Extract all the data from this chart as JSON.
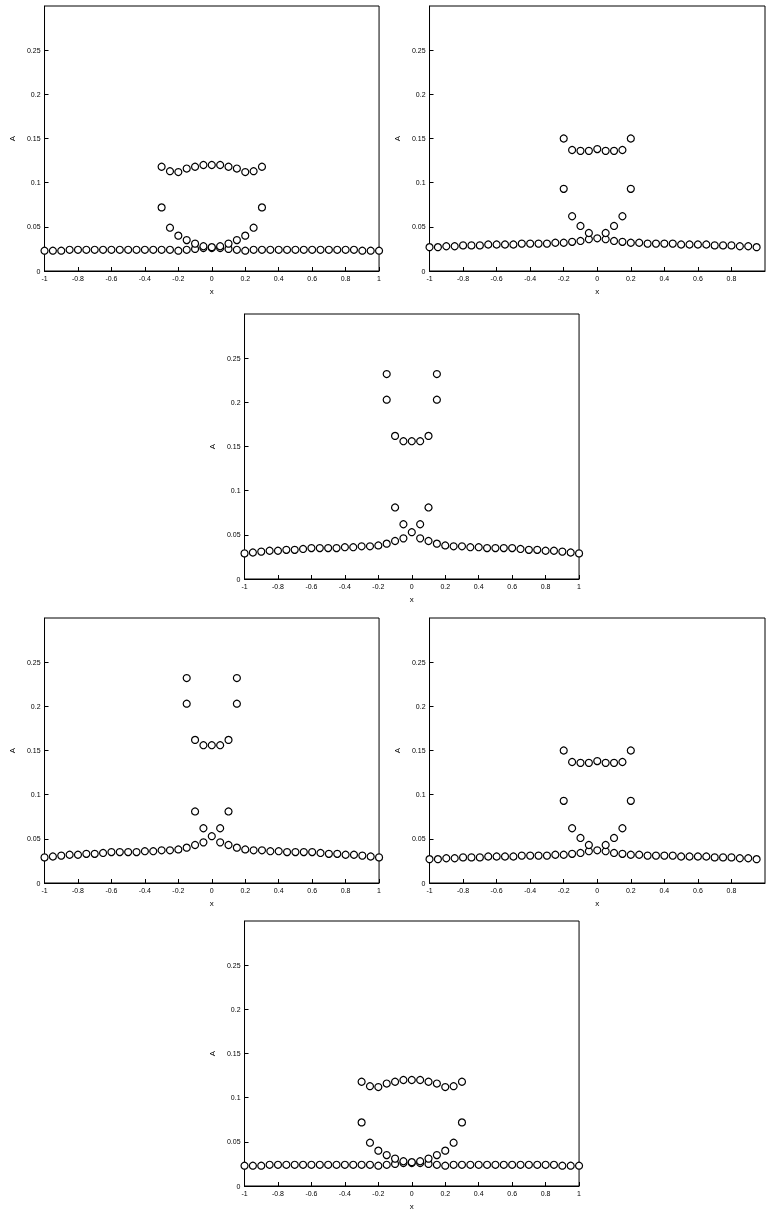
{
  "chart_data": [
    {
      "type": "scatter",
      "xlabel": "x",
      "ylabel": "A",
      "xlim": [
        -1,
        1
      ],
      "ylim": [
        0,
        0.3
      ],
      "xticks": [
        -1,
        -0.8,
        -0.6,
        -0.4,
        -0.2,
        0,
        0.2,
        0.4,
        0.6,
        0.8,
        1
      ],
      "yticks": [
        0,
        0.05,
        0.1,
        0.15,
        0.2,
        0.25
      ],
      "grid": false,
      "marker": "circle",
      "series": [
        {
          "color": "#000000",
          "x": [
            -1,
            -0.95,
            -0.9,
            -0.85,
            -0.8,
            -0.75,
            -0.7,
            -0.65,
            -0.6,
            -0.55,
            -0.5,
            -0.45,
            -0.4,
            -0.35,
            -0.3,
            -0.25,
            -0.2,
            -0.15,
            -0.1,
            -0.05,
            0,
            0.05,
            0.1,
            0.15,
            0.2,
            0.25,
            0.3,
            0.35,
            0.4,
            0.45,
            0.5,
            0.55,
            0.6,
            0.65,
            0.7,
            0.75,
            0.8,
            0.85,
            0.9,
            0.95,
            1,
            -0.3,
            -0.25,
            -0.2,
            -0.15,
            -0.1,
            -0.05,
            0,
            0.05,
            0.1,
            0.15,
            0.2,
            0.25,
            0.3,
            -0.3,
            -0.25,
            -0.2,
            -0.15,
            -0.1,
            -0.05,
            0,
            0.05,
            0.1,
            0.15,
            0.2,
            0.25,
            0.3
          ],
          "values": [
            0.023,
            0.023,
            0.023,
            0.024,
            0.024,
            0.024,
            0.024,
            0.024,
            0.024,
            0.024,
            0.024,
            0.024,
            0.024,
            0.024,
            0.024,
            0.024,
            0.023,
            0.024,
            0.025,
            0.026,
            0.026,
            0.026,
            0.025,
            0.024,
            0.023,
            0.024,
            0.024,
            0.024,
            0.024,
            0.024,
            0.024,
            0.024,
            0.024,
            0.024,
            0.024,
            0.024,
            0.024,
            0.024,
            0.023,
            0.023,
            0.023,
            0.118,
            0.113,
            0.112,
            0.116,
            0.118,
            0.12,
            0.12,
            0.12,
            0.118,
            0.116,
            0.112,
            0.113,
            0.118,
            0.072,
            0.049,
            0.04,
            0.035,
            0.031,
            0.028,
            0.027,
            0.028,
            0.031,
            0.035,
            0.04,
            0.049,
            0.072
          ]
        }
      ]
    },
    {
      "type": "scatter",
      "xlabel": "x",
      "ylabel": "A",
      "xlim": [
        -1,
        1
      ],
      "ylim": [
        0,
        0.3
      ],
      "xticks": [
        -1,
        -0.8,
        -0.6,
        -0.4,
        -0.2,
        0,
        0.2,
        0.4,
        0.6,
        0.8
      ],
      "yticks": [
        0,
        0.05,
        0.1,
        0.15,
        0.2,
        0.25
      ],
      "grid": false,
      "marker": "circle",
      "series": [
        {
          "color": "#000000",
          "x": [
            -1,
            -0.95,
            -0.9,
            -0.85,
            -0.8,
            -0.75,
            -0.7,
            -0.65,
            -0.6,
            -0.55,
            -0.5,
            -0.45,
            -0.4,
            -0.35,
            -0.3,
            -0.25,
            -0.2,
            -0.15,
            -0.1,
            -0.05,
            0,
            0.05,
            0.1,
            0.15,
            0.2,
            0.25,
            0.3,
            0.35,
            0.4,
            0.45,
            0.5,
            0.55,
            0.6,
            0.65,
            0.7,
            0.75,
            0.8,
            0.85,
            0.9,
            0.95,
            -0.2,
            -0.15,
            -0.1,
            -0.05,
            0,
            0.05,
            0.1,
            0.15,
            0.2,
            -0.2,
            0.2,
            -0.15,
            -0.1,
            -0.05,
            0.05,
            0.1,
            0.15
          ],
          "values": [
            0.027,
            0.027,
            0.028,
            0.028,
            0.029,
            0.029,
            0.029,
            0.03,
            0.03,
            0.03,
            0.03,
            0.031,
            0.031,
            0.031,
            0.031,
            0.032,
            0.032,
            0.033,
            0.034,
            0.036,
            0.037,
            0.036,
            0.034,
            0.033,
            0.032,
            0.032,
            0.031,
            0.031,
            0.031,
            0.031,
            0.03,
            0.03,
            0.03,
            0.03,
            0.029,
            0.029,
            0.029,
            0.028,
            0.028,
            0.027,
            0.15,
            0.137,
            0.136,
            0.136,
            0.138,
            0.136,
            0.136,
            0.137,
            0.15,
            0.093,
            0.093,
            0.062,
            0.051,
            0.043,
            0.043,
            0.051,
            0.062
          ]
        }
      ]
    },
    {
      "type": "scatter",
      "xlabel": "x",
      "ylabel": "A",
      "xlim": [
        -1,
        1
      ],
      "ylim": [
        0,
        0.3
      ],
      "xticks": [
        -1,
        -0.8,
        -0.6,
        -0.4,
        -0.2,
        0,
        0.2,
        0.4,
        0.6,
        0.8,
        1
      ],
      "yticks": [
        0,
        0.05,
        0.1,
        0.15,
        0.2,
        0.25
      ],
      "grid": false,
      "marker": "circle",
      "series": [
        {
          "color": "#000000",
          "x": [
            -1,
            -0.95,
            -0.9,
            -0.85,
            -0.8,
            -0.75,
            -0.7,
            -0.65,
            -0.6,
            -0.55,
            -0.5,
            -0.45,
            -0.4,
            -0.35,
            -0.3,
            -0.25,
            -0.2,
            -0.15,
            -0.1,
            -0.05,
            0,
            0.05,
            0.1,
            0.15,
            0.2,
            0.25,
            0.3,
            0.35,
            0.4,
            0.45,
            0.5,
            0.55,
            0.6,
            0.65,
            0.7,
            0.75,
            0.8,
            0.85,
            0.9,
            0.95,
            1,
            -0.15,
            0.15,
            -0.15,
            0.15,
            -0.1,
            -0.05,
            0,
            0.05,
            0.1,
            -0.1,
            0.1,
            -0.05,
            0.05
          ],
          "values": [
            0.029,
            0.03,
            0.031,
            0.032,
            0.032,
            0.033,
            0.033,
            0.034,
            0.035,
            0.035,
            0.035,
            0.035,
            0.036,
            0.036,
            0.037,
            0.037,
            0.038,
            0.04,
            0.043,
            0.046,
            0.053,
            0.046,
            0.043,
            0.04,
            0.038,
            0.037,
            0.037,
            0.036,
            0.036,
            0.035,
            0.035,
            0.035,
            0.035,
            0.034,
            0.033,
            0.033,
            0.032,
            0.032,
            0.031,
            0.03,
            0.029,
            0.232,
            0.232,
            0.203,
            0.203,
            0.162,
            0.156,
            0.156,
            0.156,
            0.162,
            0.081,
            0.081,
            0.062,
            0.062
          ]
        }
      ]
    },
    {
      "type": "scatter",
      "xlabel": "x",
      "ylabel": "A",
      "xlim": [
        -1,
        1
      ],
      "ylim": [
        0,
        0.3
      ],
      "xticks": [
        -1,
        -0.8,
        -0.6,
        -0.4,
        -0.2,
        0,
        0.2,
        0.4,
        0.6,
        0.8,
        1
      ],
      "yticks": [
        0,
        0.05,
        0.1,
        0.15,
        0.2,
        0.25
      ],
      "grid": false,
      "marker": "circle",
      "series": [
        {
          "color": "#000000",
          "x": [
            -1,
            -0.95,
            -0.9,
            -0.85,
            -0.8,
            -0.75,
            -0.7,
            -0.65,
            -0.6,
            -0.55,
            -0.5,
            -0.45,
            -0.4,
            -0.35,
            -0.3,
            -0.25,
            -0.2,
            -0.15,
            -0.1,
            -0.05,
            0,
            0.05,
            0.1,
            0.15,
            0.2,
            0.25,
            0.3,
            0.35,
            0.4,
            0.45,
            0.5,
            0.55,
            0.6,
            0.65,
            0.7,
            0.75,
            0.8,
            0.85,
            0.9,
            0.95,
            1,
            -0.15,
            0.15,
            -0.15,
            0.15,
            -0.1,
            -0.05,
            0,
            0.05,
            0.1,
            -0.1,
            0.1,
            -0.05,
            0.05
          ],
          "values": [
            0.029,
            0.03,
            0.031,
            0.032,
            0.032,
            0.033,
            0.033,
            0.034,
            0.035,
            0.035,
            0.035,
            0.035,
            0.036,
            0.036,
            0.037,
            0.037,
            0.038,
            0.04,
            0.043,
            0.046,
            0.053,
            0.046,
            0.043,
            0.04,
            0.038,
            0.037,
            0.037,
            0.036,
            0.036,
            0.035,
            0.035,
            0.035,
            0.035,
            0.034,
            0.033,
            0.033,
            0.032,
            0.032,
            0.031,
            0.03,
            0.029,
            0.232,
            0.232,
            0.203,
            0.203,
            0.162,
            0.156,
            0.156,
            0.156,
            0.162,
            0.081,
            0.081,
            0.062,
            0.062
          ]
        }
      ]
    },
    {
      "type": "scatter",
      "xlabel": "x",
      "ylabel": "A",
      "xlim": [
        -1,
        1
      ],
      "ylim": [
        0,
        0.3
      ],
      "xticks": [
        -1,
        -0.8,
        -0.6,
        -0.4,
        -0.2,
        0,
        0.2,
        0.4,
        0.6,
        0.8
      ],
      "yticks": [
        0,
        0.05,
        0.1,
        0.15,
        0.2,
        0.25
      ],
      "grid": false,
      "marker": "circle",
      "series": [
        {
          "color": "#000000",
          "x": [
            -1,
            -0.95,
            -0.9,
            -0.85,
            -0.8,
            -0.75,
            -0.7,
            -0.65,
            -0.6,
            -0.55,
            -0.5,
            -0.45,
            -0.4,
            -0.35,
            -0.3,
            -0.25,
            -0.2,
            -0.15,
            -0.1,
            -0.05,
            0,
            0.05,
            0.1,
            0.15,
            0.2,
            0.25,
            0.3,
            0.35,
            0.4,
            0.45,
            0.5,
            0.55,
            0.6,
            0.65,
            0.7,
            0.75,
            0.8,
            0.85,
            0.9,
            0.95,
            -0.2,
            -0.15,
            -0.1,
            -0.05,
            0,
            0.05,
            0.1,
            0.15,
            0.2,
            -0.2,
            0.2,
            -0.15,
            -0.1,
            -0.05,
            0.05,
            0.1,
            0.15
          ],
          "values": [
            0.027,
            0.027,
            0.028,
            0.028,
            0.029,
            0.029,
            0.029,
            0.03,
            0.03,
            0.03,
            0.03,
            0.031,
            0.031,
            0.031,
            0.031,
            0.032,
            0.032,
            0.033,
            0.034,
            0.036,
            0.037,
            0.036,
            0.034,
            0.033,
            0.032,
            0.032,
            0.031,
            0.031,
            0.031,
            0.031,
            0.03,
            0.03,
            0.03,
            0.03,
            0.029,
            0.029,
            0.029,
            0.028,
            0.028,
            0.027,
            0.15,
            0.137,
            0.136,
            0.136,
            0.138,
            0.136,
            0.136,
            0.137,
            0.15,
            0.093,
            0.093,
            0.062,
            0.051,
            0.043,
            0.043,
            0.051,
            0.062
          ]
        }
      ]
    },
    {
      "type": "scatter",
      "xlabel": "x",
      "ylabel": "A",
      "xlim": [
        -1,
        1
      ],
      "ylim": [
        0,
        0.3
      ],
      "xticks": [
        -1,
        -0.8,
        -0.6,
        -0.4,
        -0.2,
        0,
        0.2,
        0.4,
        0.6,
        0.8,
        1
      ],
      "yticks": [
        0,
        0.05,
        0.1,
        0.15,
        0.2,
        0.25
      ],
      "grid": false,
      "marker": "circle",
      "series": [
        {
          "color": "#000000",
          "x": [
            -1,
            -0.95,
            -0.9,
            -0.85,
            -0.8,
            -0.75,
            -0.7,
            -0.65,
            -0.6,
            -0.55,
            -0.5,
            -0.45,
            -0.4,
            -0.35,
            -0.3,
            -0.25,
            -0.2,
            -0.15,
            -0.1,
            -0.05,
            0,
            0.05,
            0.1,
            0.15,
            0.2,
            0.25,
            0.3,
            0.35,
            0.4,
            0.45,
            0.5,
            0.55,
            0.6,
            0.65,
            0.7,
            0.75,
            0.8,
            0.85,
            0.9,
            0.95,
            1,
            -0.3,
            -0.25,
            -0.2,
            -0.15,
            -0.1,
            -0.05,
            0,
            0.05,
            0.1,
            0.15,
            0.2,
            0.25,
            0.3,
            -0.3,
            -0.25,
            -0.2,
            -0.15,
            -0.1,
            -0.05,
            0,
            0.05,
            0.1,
            0.15,
            0.2,
            0.25,
            0.3
          ],
          "values": [
            0.023,
            0.023,
            0.023,
            0.024,
            0.024,
            0.024,
            0.024,
            0.024,
            0.024,
            0.024,
            0.024,
            0.024,
            0.024,
            0.024,
            0.024,
            0.024,
            0.023,
            0.024,
            0.025,
            0.026,
            0.026,
            0.026,
            0.025,
            0.024,
            0.023,
            0.024,
            0.024,
            0.024,
            0.024,
            0.024,
            0.024,
            0.024,
            0.024,
            0.024,
            0.024,
            0.024,
            0.024,
            0.024,
            0.023,
            0.023,
            0.023,
            0.118,
            0.113,
            0.112,
            0.116,
            0.118,
            0.12,
            0.12,
            0.12,
            0.118,
            0.116,
            0.112,
            0.113,
            0.118,
            0.072,
            0.049,
            0.04,
            0.035,
            0.031,
            0.028,
            0.027,
            0.028,
            0.031,
            0.035,
            0.04,
            0.049,
            0.072
          ]
        }
      ]
    }
  ]
}
